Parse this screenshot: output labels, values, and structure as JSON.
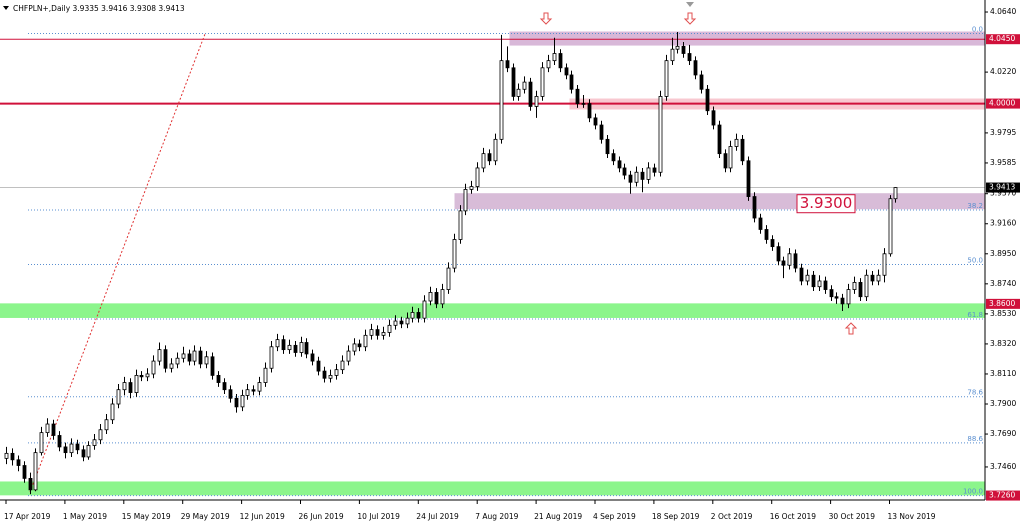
{
  "chart_data": {
    "type": "candlestick",
    "title": "CHFPLN+,Daily  3.9335 3.9416 3.9308 3.9413",
    "ylim": [
      3.7229,
      4.0724
    ],
    "yticks": [
      {
        "value": 4.064,
        "label": "4.0640"
      },
      {
        "value": 4.022,
        "label": "4.0220"
      },
      {
        "value": 3.9795,
        "label": "3.9795"
      },
      {
        "value": 3.9585,
        "label": "3.9585"
      },
      {
        "value": 3.937,
        "label": "3.9370"
      },
      {
        "value": 3.916,
        "label": "3.9160"
      },
      {
        "value": 3.895,
        "label": "3.8950"
      },
      {
        "value": 3.874,
        "label": "3.8740"
      },
      {
        "value": 3.853,
        "label": "3.8530"
      },
      {
        "value": 3.832,
        "label": "3.8320"
      },
      {
        "value": 3.811,
        "label": "3.8110"
      },
      {
        "value": 3.79,
        "label": "3.7900"
      },
      {
        "value": 3.769,
        "label": "3.7690"
      },
      {
        "value": 3.746,
        "label": "3.7460"
      }
    ],
    "up_color": "#ffffff",
    "down_color": "#000000",
    "grid": false,
    "categories": [
      "17 Apr 2019",
      null,
      null,
      null,
      null,
      null,
      null,
      null,
      null,
      null,
      "1 May 2019",
      null,
      null,
      null,
      null,
      null,
      null,
      null,
      null,
      null,
      "15 May 2019",
      null,
      null,
      null,
      null,
      null,
      null,
      null,
      null,
      null,
      "29 May 2019",
      null,
      null,
      null,
      null,
      null,
      null,
      null,
      null,
      null,
      "12 Jun 2019",
      null,
      null,
      null,
      null,
      null,
      null,
      null,
      null,
      null,
      "26 Jun 2019",
      null,
      null,
      null,
      null,
      null,
      null,
      null,
      null,
      null,
      "10 Jul 2019",
      null,
      null,
      null,
      null,
      null,
      null,
      null,
      null,
      null,
      "24 Jul 2019",
      null,
      null,
      null,
      null,
      null,
      null,
      null,
      null,
      null,
      "7 Aug 2019",
      null,
      null,
      null,
      null,
      null,
      null,
      null,
      null,
      null,
      "21 Aug 2019",
      null,
      null,
      null,
      null,
      null,
      null,
      null,
      null,
      null,
      "4 Sep 2019",
      null,
      null,
      null,
      null,
      null,
      null,
      null,
      null,
      null,
      "18 Sep 2019",
      null,
      null,
      null,
      null,
      null,
      null,
      null,
      null,
      null,
      "2 Oct 2019",
      null,
      null,
      null,
      null,
      null,
      null,
      null,
      null,
      null,
      "16 Oct 2019",
      null,
      null,
      null,
      null,
      null,
      null,
      null,
      null,
      null,
      "30 Oct 2019",
      null,
      null,
      null,
      null,
      null,
      null,
      null,
      null,
      null,
      "13 Nov 2019",
      null
    ],
    "ohlc": [
      [
        3.752,
        3.76,
        3.748,
        3.7555
      ],
      [
        3.7555,
        3.759,
        3.747,
        3.751
      ],
      [
        3.751,
        3.754,
        3.743,
        3.747
      ],
      [
        3.747,
        3.75,
        3.735,
        3.738
      ],
      [
        3.738,
        3.742,
        3.727,
        3.73
      ],
      [
        3.73,
        3.759,
        3.729,
        3.756
      ],
      [
        3.756,
        3.774,
        3.754,
        3.77
      ],
      [
        3.77,
        3.78,
        3.767,
        3.776
      ],
      [
        3.776,
        3.779,
        3.765,
        3.768
      ],
      [
        3.768,
        3.771,
        3.757,
        3.76
      ],
      [
        3.76,
        3.763,
        3.752,
        3.756
      ],
      [
        3.756,
        3.766,
        3.753,
        3.762
      ],
      [
        3.762,
        3.765,
        3.755,
        3.758
      ],
      [
        3.758,
        3.761,
        3.75,
        3.753
      ],
      [
        3.753,
        3.764,
        3.751,
        3.761
      ],
      [
        3.761,
        3.769,
        3.758,
        3.765
      ],
      [
        3.765,
        3.776,
        3.762,
        3.772
      ],
      [
        3.772,
        3.783,
        3.769,
        3.779
      ],
      [
        3.779,
        3.794,
        3.776,
        3.79
      ],
      [
        3.79,
        3.804,
        3.787,
        3.8
      ],
      [
        3.8,
        3.809,
        3.796,
        3.805
      ],
      [
        3.805,
        3.808,
        3.794,
        3.798
      ],
      [
        3.798,
        3.814,
        3.795,
        3.81
      ],
      [
        3.81,
        3.813,
        3.806,
        3.809
      ],
      [
        3.809,
        3.815,
        3.806,
        3.811
      ],
      [
        3.811,
        3.824,
        3.808,
        3.82
      ],
      [
        3.82,
        3.833,
        3.817,
        3.828
      ],
      [
        3.828,
        3.831,
        3.812,
        3.815
      ],
      [
        3.815,
        3.822,
        3.812,
        3.818
      ],
      [
        3.818,
        3.826,
        3.815,
        3.822
      ],
      [
        3.822,
        3.83,
        3.819,
        3.825
      ],
      [
        3.825,
        3.828,
        3.817,
        3.82
      ],
      [
        3.82,
        3.831,
        3.817,
        3.827
      ],
      [
        3.827,
        3.83,
        3.815,
        3.818
      ],
      [
        3.818,
        3.827,
        3.815,
        3.823
      ],
      [
        3.823,
        3.826,
        3.807,
        3.81
      ],
      [
        3.81,
        3.813,
        3.802,
        3.805
      ],
      [
        3.805,
        3.808,
        3.797,
        3.8
      ],
      [
        3.8,
        3.803,
        3.791,
        3.794
      ],
      [
        3.794,
        3.797,
        3.784,
        3.788
      ],
      [
        3.788,
        3.8,
        3.785,
        3.796
      ],
      [
        3.796,
        3.804,
        3.793,
        3.8
      ],
      [
        3.8,
        3.803,
        3.796,
        3.799
      ],
      [
        3.799,
        3.809,
        3.796,
        3.805
      ],
      [
        3.805,
        3.819,
        3.802,
        3.815
      ],
      [
        3.815,
        3.834,
        3.812,
        3.83
      ],
      [
        3.83,
        3.839,
        3.827,
        3.835
      ],
      [
        3.835,
        3.838,
        3.825,
        3.828
      ],
      [
        3.828,
        3.835,
        3.825,
        3.831
      ],
      [
        3.831,
        3.834,
        3.823,
        3.826
      ],
      [
        3.826,
        3.837,
        3.823,
        3.833
      ],
      [
        3.833,
        3.836,
        3.822,
        3.825
      ],
      [
        3.825,
        3.828,
        3.817,
        3.82
      ],
      [
        3.82,
        3.823,
        3.81,
        3.813
      ],
      [
        3.813,
        3.816,
        3.805,
        3.808
      ],
      [
        3.808,
        3.814,
        3.805,
        3.81
      ],
      [
        3.81,
        3.818,
        3.807,
        3.814
      ],
      [
        3.814,
        3.824,
        3.811,
        3.82
      ],
      [
        3.82,
        3.831,
        3.817,
        3.827
      ],
      [
        3.827,
        3.836,
        3.824,
        3.832
      ],
      [
        3.832,
        3.835,
        3.827,
        3.83
      ],
      [
        3.83,
        3.842,
        3.827,
        3.838
      ],
      [
        3.838,
        3.846,
        3.835,
        3.842
      ],
      [
        3.842,
        3.845,
        3.835,
        3.838
      ],
      [
        3.838,
        3.844,
        3.835,
        3.84
      ],
      [
        3.84,
        3.849,
        3.837,
        3.845
      ],
      [
        3.845,
        3.852,
        3.842,
        3.848
      ],
      [
        3.848,
        3.851,
        3.843,
        3.846
      ],
      [
        3.846,
        3.854,
        3.843,
        3.85
      ],
      [
        3.85,
        3.858,
        3.847,
        3.854
      ],
      [
        3.854,
        3.857,
        3.847,
        3.85
      ],
      [
        3.85,
        3.866,
        3.847,
        3.862
      ],
      [
        3.862,
        3.872,
        3.859,
        3.868
      ],
      [
        3.868,
        3.871,
        3.857,
        3.86
      ],
      [
        3.86,
        3.874,
        3.857,
        3.87
      ],
      [
        3.87,
        3.889,
        3.867,
        3.885
      ],
      [
        3.885,
        3.909,
        3.882,
        3.905
      ],
      [
        3.905,
        3.929,
        3.902,
        3.925
      ],
      [
        3.925,
        3.944,
        3.922,
        3.94
      ],
      [
        3.94,
        3.946,
        3.937,
        3.942
      ],
      [
        3.942,
        3.959,
        3.939,
        3.955
      ],
      [
        3.955,
        3.969,
        3.952,
        3.965
      ],
      [
        3.965,
        3.968,
        3.957,
        3.96
      ],
      [
        3.96,
        3.979,
        3.957,
        3.975
      ],
      [
        3.975,
        4.048,
        3.972,
        4.03
      ],
      [
        4.03,
        4.04,
        4.022,
        4.025
      ],
      [
        4.025,
        4.028,
        4.002,
        4.005
      ],
      [
        4.005,
        4.014,
        4.002,
        4.01
      ],
      [
        4.01,
        4.019,
        4.007,
        4.015
      ],
      [
        4.015,
        4.018,
        3.995,
        3.998
      ],
      [
        3.998,
        4.009,
        3.99,
        4.005
      ],
      [
        4.005,
        4.029,
        4.002,
        4.025
      ],
      [
        4.025,
        4.034,
        4.022,
        4.03
      ],
      [
        4.03,
        4.046,
        4.027,
        4.035
      ],
      [
        4.035,
        4.038,
        4.022,
        4.025
      ],
      [
        4.025,
        4.028,
        4.017,
        4.02
      ],
      [
        4.02,
        4.023,
        4.007,
        4.01
      ],
      [
        4.01,
        4.013,
        3.997,
        4.0
      ],
      [
        4.0,
        4.006,
        3.997,
        4.0
      ],
      [
        4.0,
        4.003,
        3.987,
        3.99
      ],
      [
        3.99,
        3.993,
        3.982,
        3.985
      ],
      [
        3.985,
        3.988,
        3.972,
        3.975
      ],
      [
        3.975,
        3.978,
        3.962,
        3.965
      ],
      [
        3.965,
        3.968,
        3.957,
        3.96
      ],
      [
        3.96,
        3.963,
        3.952,
        3.955
      ],
      [
        3.955,
        3.958,
        3.947,
        3.95
      ],
      [
        3.95,
        3.953,
        3.937,
        3.945
      ],
      [
        3.945,
        3.956,
        3.942,
        3.952
      ],
      [
        3.952,
        3.955,
        3.938,
        3.947
      ],
      [
        3.947,
        3.959,
        3.944,
        3.955
      ],
      [
        3.955,
        3.958,
        3.949,
        3.952
      ],
      [
        3.952,
        4.009,
        3.949,
        4.005
      ],
      [
        4.005,
        4.034,
        4.002,
        4.03
      ],
      [
        4.03,
        4.046,
        4.027,
        4.038
      ],
      [
        4.038,
        4.05,
        4.035,
        4.04
      ],
      [
        4.04,
        4.043,
        4.032,
        4.035
      ],
      [
        4.035,
        4.041,
        4.027,
        4.03
      ],
      [
        4.03,
        4.033,
        4.017,
        4.02
      ],
      [
        4.02,
        4.023,
        4.007,
        4.01
      ],
      [
        4.01,
        4.013,
        3.992,
        3.995
      ],
      [
        3.995,
        3.998,
        3.982,
        3.985
      ],
      [
        3.985,
        3.988,
        3.962,
        3.965
      ],
      [
        3.965,
        3.968,
        3.952,
        3.955
      ],
      [
        3.955,
        3.974,
        3.952,
        3.97
      ],
      [
        3.97,
        3.979,
        3.967,
        3.975
      ],
      [
        3.975,
        3.978,
        3.957,
        3.96
      ],
      [
        3.96,
        3.963,
        3.932,
        3.935
      ],
      [
        3.935,
        3.938,
        3.917,
        3.92
      ],
      [
        3.92,
        3.923,
        3.909,
        3.912
      ],
      [
        3.912,
        3.915,
        3.902,
        3.905
      ],
      [
        3.905,
        3.908,
        3.897,
        3.9
      ],
      [
        3.9,
        3.903,
        3.887,
        3.89
      ],
      [
        3.89,
        3.893,
        3.878,
        3.887
      ],
      [
        3.887,
        3.899,
        3.884,
        3.895
      ],
      [
        3.895,
        3.898,
        3.882,
        3.885
      ],
      [
        3.885,
        3.888,
        3.873,
        3.876
      ],
      [
        3.876,
        3.884,
        3.873,
        3.88
      ],
      [
        3.88,
        3.883,
        3.869,
        3.872
      ],
      [
        3.872,
        3.88,
        3.869,
        3.876
      ],
      [
        3.876,
        3.879,
        3.867,
        3.87
      ],
      [
        3.87,
        3.873,
        3.862,
        3.865
      ],
      [
        3.865,
        3.868,
        3.86,
        3.864
      ],
      [
        3.864,
        3.867,
        3.855,
        3.86
      ],
      [
        3.86,
        3.874,
        3.857,
        3.87
      ],
      [
        3.87,
        3.879,
        3.867,
        3.875
      ],
      [
        3.875,
        3.878,
        3.862,
        3.865
      ],
      [
        3.865,
        3.884,
        3.862,
        3.88
      ],
      [
        3.88,
        3.883,
        3.873,
        3.876
      ],
      [
        3.876,
        3.884,
        3.873,
        3.88
      ],
      [
        3.88,
        3.899,
        3.875,
        3.895
      ],
      [
        3.895,
        3.936,
        3.893,
        3.9335
      ],
      [
        3.9335,
        3.9416,
        3.9308,
        3.9413
      ]
    ],
    "zones": [
      {
        "high": 4.05,
        "low": 4.0409,
        "color": "#d8b8d8"
      },
      {
        "high": 4.0032,
        "low": 3.9962,
        "color": "#f8c8d0"
      },
      {
        "high": 3.937,
        "low": 3.9265,
        "color": "#d8bcd8"
      },
      {
        "high": 3.86,
        "low": 3.8505,
        "color": "#8cf58c"
      },
      {
        "high": 3.7355,
        "low": 3.7265,
        "color": "#8cf58c"
      }
    ],
    "lines": [
      {
        "value": 4.045,
        "color": "#d0103a"
      },
      {
        "value": 4.0,
        "color": "#d0103a"
      },
      {
        "value": 3.9413,
        "color": "#c0c0c0"
      }
    ],
    "fib_levels": [
      {
        "label": "0.0",
        "value": 4.049
      },
      {
        "label": "38.2",
        "value": 3.9256
      },
      {
        "label": "50.0",
        "value": 3.8875
      },
      {
        "label": "61.8",
        "value": 3.8494
      },
      {
        "label": "78.6",
        "value": 3.7951
      },
      {
        "label": "88.6",
        "value": 3.7628
      },
      {
        "label": "100.0",
        "value": 3.726
      }
    ],
    "price_labels": [
      {
        "value": 4.045,
        "label": "4.0450",
        "color": "#d0103a"
      },
      {
        "value": 4.0,
        "label": "4.0000",
        "color": "#d0103a"
      },
      {
        "value": 3.9413,
        "label": "3.9413",
        "color": "#000000"
      },
      {
        "value": 3.86,
        "label": "3.8600",
        "color": "#d0103a"
      },
      {
        "value": 3.726,
        "label": "3.7260",
        "color": "#d0103a"
      }
    ],
    "annotation": {
      "value": 3.93,
      "label": "3.9300"
    }
  }
}
